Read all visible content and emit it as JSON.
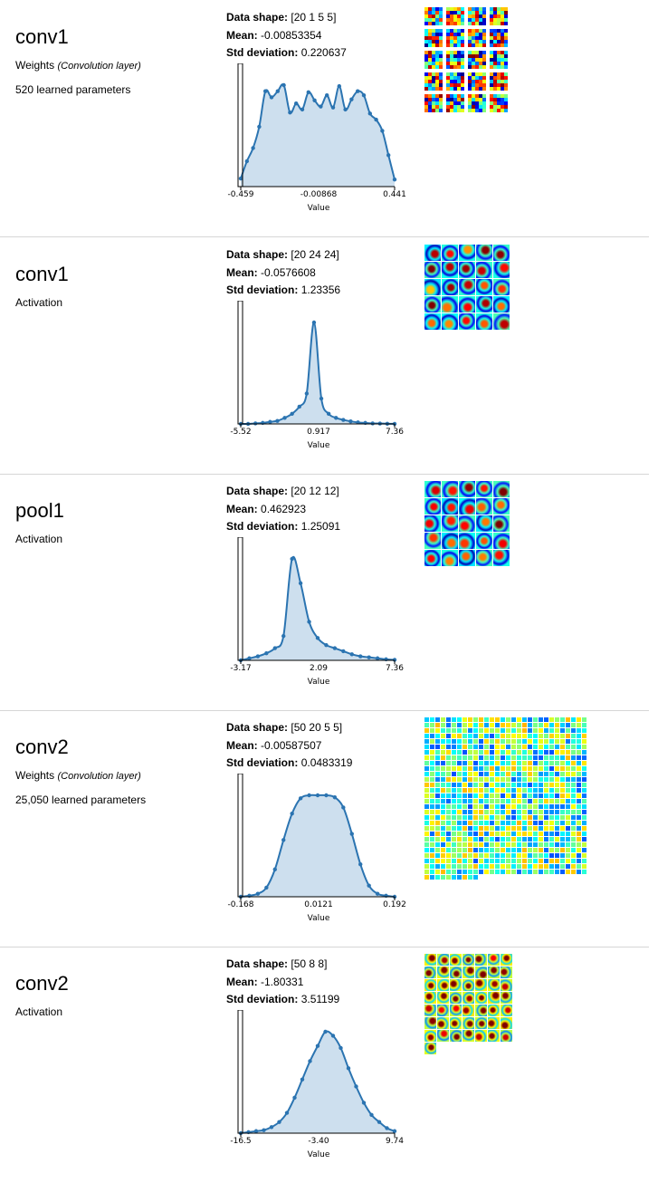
{
  "layers": [
    {
      "name": "conv1",
      "type": "Weights",
      "subtype": "(Convolution layer)",
      "params": "520 learned parameters",
      "shape_label": "Data shape:",
      "shape": "[20 1 5 5]",
      "mean_label": "Mean:",
      "mean": "-0.00853354",
      "std_label": "Std deviation:",
      "std": "0.220637",
      "xmin": "-0.459",
      "xmid": "-0.00868",
      "xmax": "0.441",
      "xlabel": "Value",
      "hist": [
        0.08,
        0.25,
        0.38,
        0.59,
        0.94,
        0.88,
        0.94,
        1.0,
        0.73,
        0.82,
        0.76,
        0.93,
        0.85,
        0.79,
        0.9,
        0.78,
        0.99,
        0.76,
        0.86,
        0.94,
        0.9,
        0.72,
        0.66,
        0.55,
        0.31,
        0.07
      ],
      "viz": {
        "grid": 4,
        "cols": 4,
        "rows": 5,
        "cell": 20,
        "gap": 4,
        "style": "jet",
        "count": 20,
        "seed": 11
      }
    },
    {
      "name": "conv1",
      "type": "Activation",
      "subtype": "",
      "params": "",
      "shape_label": "Data shape:",
      "shape": "[20 24 24]",
      "mean_label": "Mean:",
      "mean": "-0.0576608",
      "std_label": "Std deviation:",
      "std": "1.23356",
      "xmin": "-5.52",
      "xmid": "0.917",
      "xmax": "7.36",
      "xlabel": "Value",
      "hist": [
        0.0,
        0.0,
        0.005,
        0.01,
        0.02,
        0.03,
        0.06,
        0.1,
        0.17,
        0.3,
        1.0,
        0.25,
        0.1,
        0.06,
        0.04,
        0.025,
        0.015,
        0.01,
        0.005,
        0.004,
        0.002,
        0.001
      ],
      "viz": {
        "cols": 5,
        "rows": 5,
        "cell": 18,
        "gap": 1,
        "style": "act",
        "count": 25,
        "seed": 23
      }
    },
    {
      "name": "pool1",
      "type": "Activation",
      "subtype": "",
      "params": "",
      "shape_label": "Data shape:",
      "shape": "[20 12 12]",
      "mean_label": "Mean:",
      "mean": "0.462923",
      "std_label": "Std deviation:",
      "std": "1.25091",
      "xmin": "-3.17",
      "xmid": "2.09",
      "xmax": "7.36",
      "xlabel": "Value",
      "hist": [
        0.0,
        0.02,
        0.04,
        0.07,
        0.12,
        0.24,
        1.0,
        0.76,
        0.38,
        0.22,
        0.15,
        0.12,
        0.09,
        0.06,
        0.04,
        0.03,
        0.02,
        0.01,
        0.005
      ],
      "viz": {
        "cols": 5,
        "rows": 5,
        "cell": 18,
        "gap": 1,
        "style": "act",
        "count": 25,
        "seed": 37
      }
    },
    {
      "name": "conv2",
      "type": "Weights",
      "subtype": "(Convolution layer)",
      "params": "25,050 learned parameters",
      "shape_label": "Data shape:",
      "shape": "[50 20 5 5]",
      "mean_label": "Mean:",
      "mean": "-0.00587507",
      "std_label": "Std deviation:",
      "std": "0.0483319",
      "xmin": "-0.168",
      "xmid": "0.0121",
      "xmax": "0.192",
      "xlabel": "Value",
      "hist": [
        0.0,
        0.01,
        0.03,
        0.09,
        0.27,
        0.56,
        0.82,
        0.97,
        1.0,
        1.0,
        1.0,
        0.98,
        0.88,
        0.62,
        0.32,
        0.11,
        0.03,
        0.01,
        0.0
      ],
      "viz": {
        "cols": 30,
        "rows": 30,
        "cell": 5,
        "gap": 1,
        "style": "dense",
        "count": 880,
        "seed": 51
      }
    },
    {
      "name": "conv2",
      "type": "Activation",
      "subtype": "",
      "params": "",
      "shape_label": "Data shape:",
      "shape": "[50 8 8]",
      "mean_label": "Mean:",
      "mean": "-1.80331",
      "std_label": "Std deviation:",
      "std": "3.51199",
      "xmin": "-16.5",
      "xmid": "-3.40",
      "xmax": "9.74",
      "xlabel": "Value",
      "hist": [
        0.0,
        0.01,
        0.02,
        0.03,
        0.06,
        0.11,
        0.2,
        0.35,
        0.53,
        0.71,
        0.86,
        1.0,
        0.96,
        0.84,
        0.64,
        0.46,
        0.3,
        0.18,
        0.11,
        0.05,
        0.02
      ],
      "viz": {
        "cols": 7,
        "rows": 8,
        "cell": 13,
        "gap": 1,
        "style": "act2",
        "count": 50,
        "seed": 67
      }
    }
  ],
  "colors": {
    "line": "#2b74b1",
    "fill": "#cddfee",
    "axis": "#000000"
  }
}
